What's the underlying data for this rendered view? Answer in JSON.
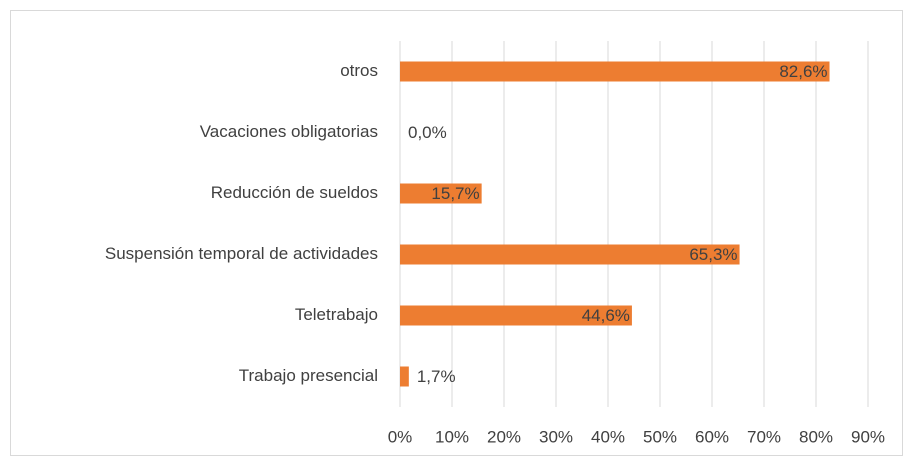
{
  "chart_data": {
    "type": "hbar",
    "categories": [
      "otros",
      "Vacaciones obligatorias",
      "Reducción de sueldos",
      "Suspensión temporal de actividades",
      "Teletrabajo",
      "Trabajo presencial"
    ],
    "values": [
      82.6,
      0.0,
      15.7,
      65.3,
      44.6,
      1.7
    ],
    "value_labels": [
      "82,6%",
      "0,0%",
      "15,7%",
      "65,3%",
      "44,6%",
      "1,7%"
    ],
    "color": "#ed7d31",
    "xlim": [
      0,
      90
    ],
    "xticks": [
      {
        "value": 0,
        "label": "0%"
      },
      {
        "value": 10,
        "label": "10%"
      },
      {
        "value": 20,
        "label": "20%"
      },
      {
        "value": 30,
        "label": "30%"
      },
      {
        "value": 40,
        "label": "40%"
      },
      {
        "value": 50,
        "label": "50%"
      },
      {
        "value": 60,
        "label": "60%"
      },
      {
        "value": 70,
        "label": "70%"
      },
      {
        "value": 80,
        "label": "80%"
      },
      {
        "value": 90,
        "label": "90%"
      }
    ],
    "grid": true
  }
}
